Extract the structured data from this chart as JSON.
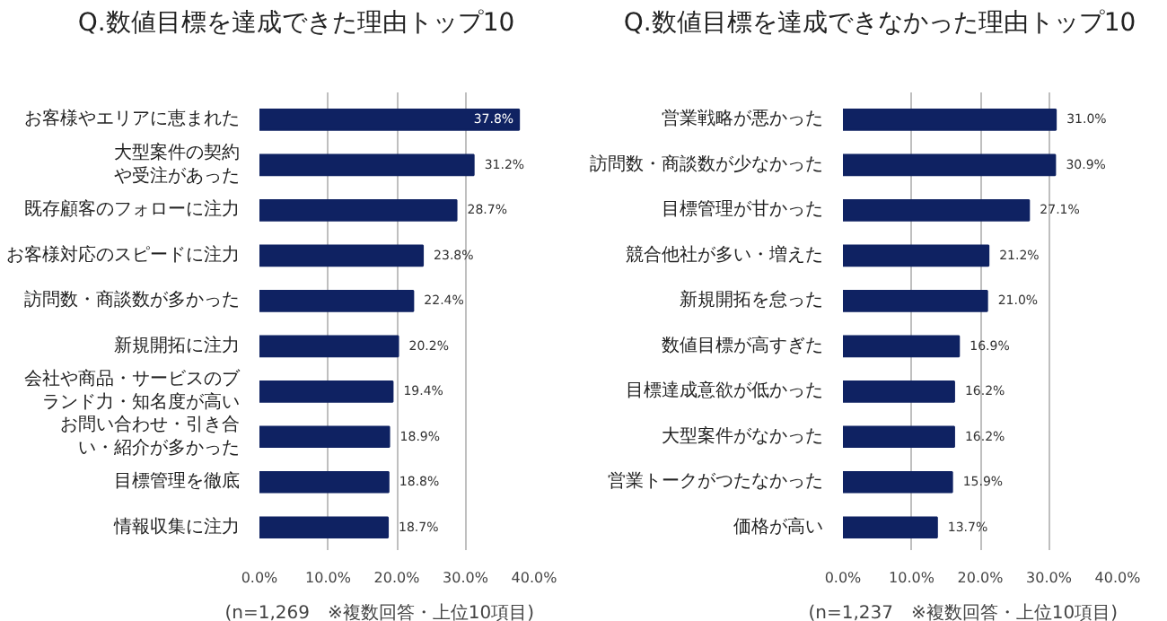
{
  "chart_data": [
    {
      "type": "bar",
      "orientation": "horizontal",
      "title": "Q.数値目標を達成できた理由トップ10",
      "categories": [
        "お客様やエリアに恵まれた",
        "大型案件の契約や受注があった",
        "既存顧客のフォローに注力",
        "お客様対応のスピードに注力",
        "訪問数・商談数が多かった",
        "新規開拓に注力",
        "会社や商品・サービスのブランド力・知名度が高い",
        "お問い合わせ・引き合い・紹介が多かった",
        "目標管理を徹底",
        "情報収集に注力"
      ],
      "values": [
        37.8,
        31.2,
        28.7,
        23.8,
        22.4,
        20.2,
        19.4,
        18.9,
        18.8,
        18.7
      ],
      "value_labels": [
        "37.8%",
        "31.2%",
        "28.7%",
        "23.8%",
        "22.4%",
        "20.2%",
        "19.4%",
        "18.9%",
        "18.8%",
        "18.7%"
      ],
      "color": "#0f2262",
      "xlim": [
        0,
        40
      ],
      "xticks": [
        {
          "value": 0,
          "label": "0.0%"
        },
        {
          "value": 10,
          "label": "10.0%"
        },
        {
          "value": 20,
          "label": "20.0%"
        },
        {
          "value": 30,
          "label": "30.0%"
        },
        {
          "value": 40,
          "label": "40.0%"
        }
      ],
      "grid": "x",
      "annotations": [
        "(n=1,269　※複数回答・上位10項目)"
      ]
    },
    {
      "type": "bar",
      "orientation": "horizontal",
      "title": "Q.数値目標を達成できなかった理由トップ10",
      "categories": [
        "営業戦略が悪かった",
        "訪問数・商談数が少なかった",
        "目標管理が甘かった",
        "競合他社が多い・増えた",
        "新規開拓を怠った",
        "数値目標が高すぎた",
        "目標達成意欲が低かった",
        "大型案件がなかった",
        "営業トークがつたなかった",
        "価格が高い"
      ],
      "values": [
        31.0,
        30.9,
        27.1,
        21.2,
        21.0,
        16.9,
        16.2,
        16.2,
        15.9,
        13.7
      ],
      "value_labels": [
        "31.0%",
        "30.9%",
        "27.1%",
        "21.2%",
        "21.0%",
        "16.9%",
        "16.2%",
        "16.2%",
        "15.9%",
        "13.7%"
      ],
      "color": "#0f2262",
      "xlim": [
        0,
        40
      ],
      "xticks": [
        {
          "value": 0,
          "label": "0.0%"
        },
        {
          "value": 10,
          "label": "10.0%"
        },
        {
          "value": 20,
          "label": "20.0%"
        },
        {
          "value": 30,
          "label": "30.0%"
        },
        {
          "value": 40,
          "label": "40.0%"
        }
      ],
      "grid": "x",
      "annotations": [
        "(n=1,237　※複数回答・上位10項目)"
      ]
    }
  ]
}
